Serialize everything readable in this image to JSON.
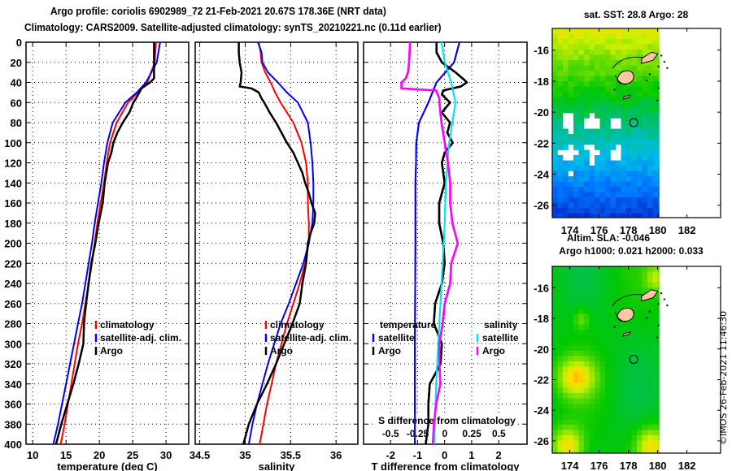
{
  "header": {
    "line1": "Argo profile: coriolis 6902989_72 21-Feb-2021 20.67S 178.36E (NRT data)",
    "line2": "Climatology: CARS2009. Satellite-adjusted climatology: synTS_20210221.nc (0.11d earlier)"
  },
  "copyright": "©IMOS 26-Feb-2021 11:46:30",
  "colors": {
    "climatology": "#ff0000",
    "satellite": "#0000ff",
    "argo": "#000000",
    "sal_satellite": "#00e5ee",
    "sal_argo": "#ff00ff",
    "land": "#fcc8a0"
  },
  "chart_data": [
    {
      "type": "line",
      "name": "temperature-profile",
      "xlabel": "temperature (deg C)",
      "ylabel": "depth",
      "xlim": [
        9,
        33.4
      ],
      "ylim": [
        400,
        0
      ],
      "xticks": [
        10,
        15,
        20,
        25,
        30
      ],
      "yticks": [
        0,
        20,
        40,
        60,
        80,
        100,
        120,
        140,
        160,
        180,
        200,
        220,
        240,
        260,
        280,
        300,
        320,
        340,
        360,
        380,
        400
      ],
      "grid": true,
      "legend_position": "middle-right",
      "legend": [
        "climatology",
        "satellite-adj. clim.",
        "Argo"
      ],
      "series": [
        {
          "name": "climatology",
          "color": "#ff0000",
          "depth": [
            0,
            20,
            40,
            50,
            60,
            80,
            100,
            120,
            140,
            160,
            180,
            200,
            220,
            240,
            260,
            280,
            300,
            320,
            340,
            360,
            380,
            400
          ],
          "values": [
            28.5,
            28.3,
            27.2,
            25.8,
            24.3,
            22.6,
            21.6,
            21.1,
            20.7,
            20.2,
            19.7,
            19.3,
            18.9,
            18.4,
            17.9,
            17.4,
            16.8,
            16.3,
            15.8,
            15.3,
            14.8,
            14.2
          ]
        },
        {
          "name": "satellite-adj. clim.",
          "color": "#0000ff",
          "depth": [
            0,
            20,
            40,
            50,
            60,
            80,
            100,
            120,
            140,
            160,
            180,
            200,
            220,
            240,
            260,
            280,
            300,
            320,
            340,
            360,
            380,
            400
          ],
          "values": [
            29.1,
            28.6,
            27.0,
            25.6,
            23.9,
            22.0,
            21.2,
            20.7,
            20.3,
            19.8,
            19.3,
            18.9,
            18.4,
            17.9,
            17.4,
            16.8,
            16.2,
            15.6,
            15.0,
            14.4,
            13.8,
            13.1
          ]
        },
        {
          "name": "Argo",
          "color": "#000000",
          "depth": [
            0,
            10,
            20,
            30,
            36,
            40,
            46,
            50,
            56,
            60,
            70,
            80,
            90,
            100,
            110,
            120,
            140,
            160,
            180,
            200,
            220,
            240,
            260,
            280,
            300,
            320,
            340,
            360,
            380,
            400
          ],
          "values": [
            28.2,
            28.2,
            28.2,
            28.2,
            28.2,
            27.6,
            26.3,
            26.0,
            25.5,
            25.1,
            24.5,
            23.5,
            22.7,
            22.1,
            21.8,
            21.3,
            20.8,
            20.5,
            19.9,
            19.4,
            18.8,
            18.4,
            18.0,
            17.7,
            17.6,
            16.9,
            16.1,
            15.2,
            14.3,
            13.5
          ]
        }
      ]
    },
    {
      "type": "line",
      "name": "salinity-profile",
      "xlabel": "salinity",
      "ylabel": "depth",
      "xlim": [
        34.45,
        36.24
      ],
      "ylim": [
        400,
        0
      ],
      "xticks": [
        34.5,
        35,
        35.5,
        36
      ],
      "grid": true,
      "legend_position": "middle-right",
      "legend": [
        "climatology",
        "satellite-adj. clim.",
        "Argo"
      ],
      "series": [
        {
          "name": "climatology",
          "color": "#ff0000",
          "depth": [
            0,
            10,
            20,
            30,
            40,
            50,
            60,
            80,
            100,
            120,
            140,
            160,
            180,
            200,
            220,
            240,
            260,
            280,
            300,
            320,
            340,
            360,
            380,
            400
          ],
          "values": [
            35.15,
            35.17,
            35.18,
            35.22,
            35.28,
            35.33,
            35.39,
            35.53,
            35.62,
            35.67,
            35.69,
            35.69,
            35.7,
            35.7,
            35.66,
            35.6,
            35.53,
            35.46,
            35.4,
            35.34,
            35.29,
            35.24,
            35.2,
            35.16
          ]
        },
        {
          "name": "satellite-adj. clim.",
          "color": "#0000ff",
          "depth": [
            0,
            10,
            20,
            30,
            40,
            50,
            60,
            80,
            100,
            120,
            140,
            160,
            180,
            200,
            220,
            240,
            260,
            280,
            300,
            320,
            340,
            360,
            380,
            400
          ],
          "values": [
            35.14,
            35.18,
            35.19,
            35.25,
            35.36,
            35.46,
            35.58,
            35.69,
            35.72,
            35.74,
            35.75,
            35.75,
            35.74,
            35.7,
            35.64,
            35.56,
            35.48,
            35.39,
            35.32,
            35.25,
            35.19,
            35.13,
            35.08,
            35.04
          ]
        },
        {
          "name": "Argo",
          "color": "#000000",
          "depth": [
            0,
            10,
            20,
            30,
            40,
            44,
            46,
            50,
            56,
            60,
            70,
            80,
            90,
            100,
            110,
            120,
            130,
            140,
            150,
            160,
            170,
            180,
            190,
            200,
            220,
            240,
            260,
            280,
            300,
            320,
            340,
            360,
            380,
            400
          ],
          "values": [
            34.93,
            34.93,
            34.94,
            34.96,
            34.95,
            34.94,
            35.07,
            35.15,
            35.18,
            35.21,
            35.27,
            35.34,
            35.4,
            35.46,
            35.53,
            35.58,
            35.63,
            35.66,
            35.7,
            35.73,
            35.77,
            35.76,
            35.72,
            35.69,
            35.67,
            35.63,
            35.6,
            35.52,
            35.43,
            35.34,
            35.24,
            35.13,
            35.04,
            34.98
          ]
        }
      ]
    },
    {
      "type": "line",
      "name": "difference-profile",
      "xlabel": "T difference from climatology",
      "xlabel2": "S difference from climatology",
      "ylabel": "depth",
      "xlim": [
        -3.0,
        3.05
      ],
      "x2lim": [
        -0.75,
        0.76
      ],
      "ylim": [
        400,
        0
      ],
      "xticks": [
        -2,
        -1,
        0,
        1,
        2
      ],
      "x2ticks": [
        "-0.5",
        "-0.25",
        "0",
        "0.25",
        "0.5"
      ],
      "grid": true,
      "legend_position": "middle",
      "legend_groups": [
        {
          "title": "temperature",
          "items": [
            "satellite",
            "Argo"
          ]
        },
        {
          "title": "salinity",
          "items": [
            "satellite",
            "Argo"
          ]
        }
      ],
      "series": [
        {
          "name": "temperature satellite",
          "axis": "T",
          "color": "#0000ff",
          "depth": [
            0,
            20,
            40,
            60,
            80,
            100,
            120,
            140,
            200,
            300,
            400
          ],
          "values": [
            0.55,
            0.35,
            -0.3,
            -0.6,
            -0.95,
            -1.05,
            -1.06,
            -1.08,
            -1.08,
            -1.1,
            -1.1
          ]
        },
        {
          "name": "temperature Argo",
          "axis": "T",
          "color": "#000000",
          "depth": [
            0,
            10,
            20,
            30,
            38,
            40,
            44,
            48,
            52,
            60,
            70,
            80,
            90,
            100,
            110,
            120,
            140,
            160,
            180,
            200,
            220,
            240,
            260,
            280,
            300,
            320,
            340,
            360,
            380,
            400
          ],
          "values": [
            -0.3,
            -0.3,
            -0.1,
            0.4,
            0.75,
            0.82,
            0.6,
            -0.05,
            -0.1,
            0.2,
            -0.1,
            0.2,
            0.1,
            0.3,
            0.0,
            -0.1,
            0.0,
            -0.2,
            -0.2,
            -0.05,
            0.0,
            -0.1,
            -0.35,
            -0.4,
            -0.1,
            -0.15,
            -0.55,
            -0.6,
            -0.6,
            -0.7
          ]
        },
        {
          "name": "salinity satellite",
          "axis": "S",
          "color": "#00e5ee",
          "depth": [
            0,
            20,
            40,
            60,
            80,
            100,
            140,
            180,
            220,
            260,
            300,
            340,
            380,
            400
          ],
          "values": [
            -0.03,
            0.0,
            0.06,
            0.1,
            0.07,
            0.04,
            0.01,
            0.0,
            -0.02,
            -0.04,
            -0.06,
            -0.08,
            -0.09,
            -0.1
          ]
        },
        {
          "name": "salinity Argo",
          "axis": "S",
          "color": "#ff00ff",
          "depth": [
            0,
            20,
            30,
            36,
            40,
            46,
            48,
            56,
            60,
            80,
            100,
            120,
            140,
            160,
            180,
            200,
            220,
            240,
            260,
            280,
            300,
            320,
            340,
            360,
            380,
            400
          ],
          "values": [
            -0.32,
            -0.33,
            -0.34,
            -0.36,
            -0.4,
            -0.4,
            -0.08,
            -0.05,
            -0.05,
            -0.03,
            0.0,
            0.03,
            0.05,
            0.05,
            0.07,
            0.12,
            0.06,
            0.05,
            0.0,
            -0.02,
            -0.05,
            -0.05,
            -0.04,
            -0.08,
            -0.1,
            -0.11
          ]
        }
      ]
    },
    {
      "type": "heatmap",
      "name": "sst-map",
      "title": "sat. SST: 28.8 Argo: 28",
      "xlim": [
        172.8,
        184.3
      ],
      "ylim": [
        -26.8,
        -14.6
      ],
      "xticks": [
        174,
        176,
        178,
        180,
        182
      ],
      "yticks": [
        -16,
        -18,
        -20,
        -22,
        -24,
        -26
      ],
      "data_extent_lon": [
        172.8,
        180.1
      ],
      "argo_position": {
        "lon": 178.36,
        "lat": -20.67
      },
      "palette_description": "yellow-green north to blue south with white gaps (missing data)"
    },
    {
      "type": "heatmap",
      "name": "sla-map",
      "title": "Altim. SLA: -0.046",
      "subtitle": "Argo h1000: 0.021 h2000: 0.033",
      "xlim": [
        172.8,
        184.3
      ],
      "ylim": [
        -26.8,
        -14.6
      ],
      "xticks": [
        174,
        176,
        178,
        180,
        182
      ],
      "yticks": [
        -16,
        -18,
        -20,
        -22,
        -24,
        -26
      ],
      "data_extent_lon": [
        172.8,
        180.1
      ],
      "argo_position": {
        "lon": 178.36,
        "lat": -20.67
      },
      "palette_description": "smooth green field with yellow highs in the south-west and south-east"
    }
  ]
}
